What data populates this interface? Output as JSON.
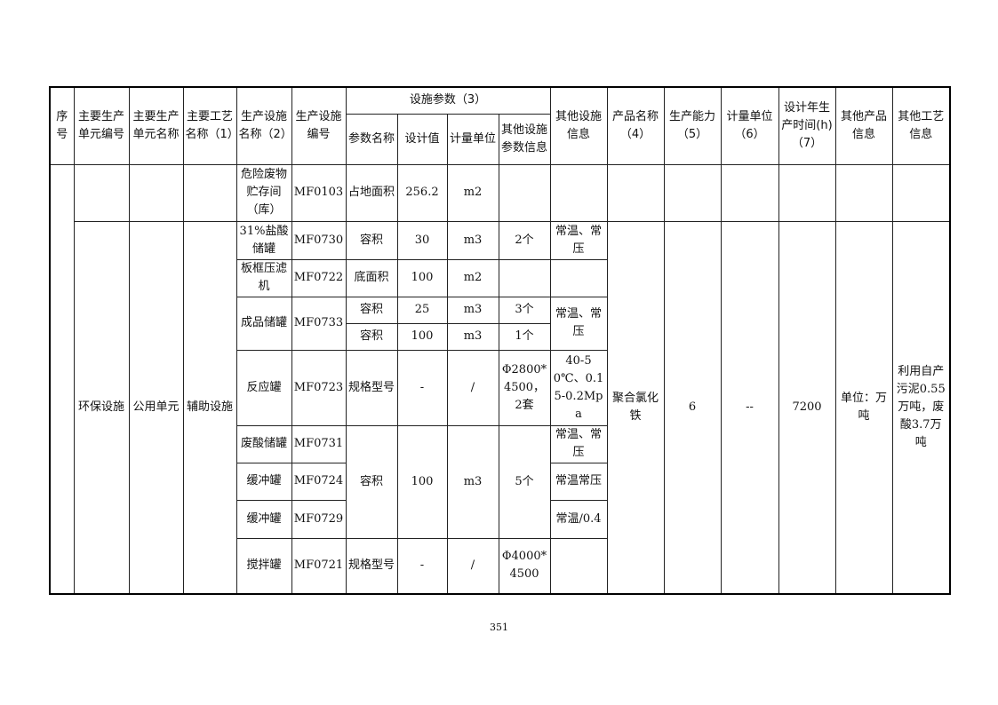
{
  "header": {
    "seq": "序号",
    "unit_code": "主要生产单元编号",
    "unit_name": "主要生产单元名称",
    "process": "主要工艺名称（1）",
    "facility_name": "生产设施名称（2）",
    "facility_code": "生产设施编号",
    "params_group": "设施参数（3）",
    "param_name": "参数名称",
    "design_value": "设计值",
    "measure_unit": "计量单位",
    "other_param": "其他设施参数信息",
    "other_facility": "其他设施信息",
    "product_name": "产品名称（4）",
    "capacity": "生产能力（5）",
    "cap_unit": "计量单位（6）",
    "design_hours": "设计年生产时间(h)（7）",
    "other_product": "其他产品信息",
    "other_process": "其他工艺信息"
  },
  "group": {
    "unit_code": "环保设施",
    "unit_name": "公用单元",
    "process": "辅助设施",
    "product_name": "聚合氯化铁",
    "capacity": "6",
    "cap_unit": "--",
    "design_hours": "7200",
    "other_product": "单位：万吨",
    "other_process": "利用自产污泥0.55万吨，废酸3.7万吨"
  },
  "rows": [
    {
      "name": "危险废物贮存间（库）",
      "code": "MF0103",
      "param": "占地面积",
      "value": "256.2",
      "unit": "m2",
      "other_param": "",
      "other_info": ""
    },
    {
      "name": "31%盐酸储罐",
      "code": "MF0730",
      "param": "容积",
      "value": "30",
      "unit": "m3",
      "other_param": "2个",
      "other_info": "常温、常压"
    },
    {
      "name": "板框压滤机",
      "code": "MF0722",
      "param": "底面积",
      "value": "100",
      "unit": "m2",
      "other_param": "",
      "other_info": ""
    },
    {
      "name": "成品储罐",
      "code": "MF0733",
      "param": "容积",
      "value": "25",
      "unit": "m3",
      "other_param": "3个",
      "other_info": "常温、常压"
    },
    {
      "param": "容积",
      "value": "100",
      "unit": "m3",
      "other_param": "1个"
    },
    {
      "name": "反应罐",
      "code": "MF0723",
      "param": "规格型号",
      "value": "-",
      "unit": "/",
      "other_param": "Φ2800*4500，2套",
      "other_info": "40-50℃、0.15-0.2Mpa"
    },
    {
      "name": "废酸储罐",
      "code": "MF0731",
      "param": "容积",
      "value": "100",
      "unit": "m3",
      "other_param": "5个",
      "other_info": "常温、常压"
    },
    {
      "name": "缓冲罐",
      "code": "MF0724",
      "other_info": "常温常压"
    },
    {
      "name": "缓冲罐",
      "code": "MF0729",
      "other_info": "常温/0.4"
    },
    {
      "name": "搅拌罐",
      "code": "MF0721",
      "param": "规格型号",
      "value": "-",
      "unit": "/",
      "other_param": "Φ4000*4500",
      "other_info": ""
    }
  ],
  "page_number": "351"
}
